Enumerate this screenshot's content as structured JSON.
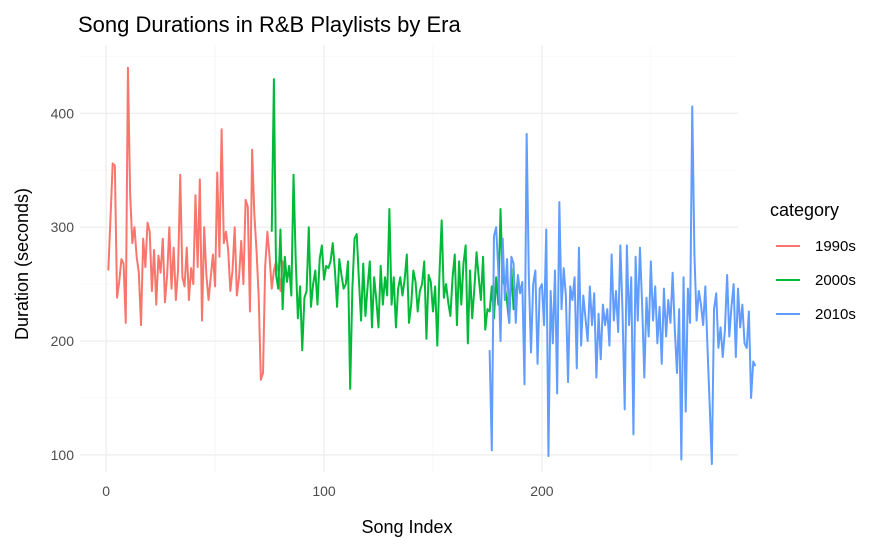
{
  "chart_data": {
    "type": "line",
    "title": "Song Durations in R&B Playlists by Era",
    "xlabel": "Song Index",
    "ylabel": "Duration (seconds)",
    "xlim": [
      -12,
      290
    ],
    "ylim": [
      85,
      460
    ],
    "xticks": [
      0,
      100,
      200
    ],
    "yticks": [
      100,
      200,
      300,
      400
    ],
    "grid": true,
    "legend": {
      "title": "category",
      "position": "right"
    },
    "series": [
      {
        "name": "1990s",
        "color": "#F8766D",
        "x_start": 1,
        "values": [
          262,
          308,
          356,
          354,
          238,
          252,
          272,
          268,
          216,
          440,
          330,
          286,
          300,
          274,
          260,
          214,
          290,
          265,
          304,
          296,
          244,
          280,
          232,
          275,
          260,
          290,
          234,
          258,
          300,
          246,
          282,
          236,
          262,
          346,
          256,
          248,
          282,
          236,
          264,
          250,
          328,
          265,
          342,
          218,
          300,
          258,
          236,
          256,
          276,
          248,
          348,
          274,
          386,
          286,
          296,
          280,
          244,
          262,
          300,
          240,
          256,
          288,
          250,
          324,
          318,
          226,
          368,
          312,
          280,
          240,
          166,
          172,
          266,
          296,
          274,
          246,
          262,
          270,
          262,
          244,
          270,
          262,
          254
        ]
      },
      {
        "name": "2000s",
        "color": "#00BA38",
        "x_start": 76,
        "values": [
          296,
          430,
          258,
          246,
          298,
          228,
          274,
          252,
          266,
          240,
          346,
          272,
          220,
          248,
          192,
          238,
          244,
          300,
          230,
          250,
          262,
          232,
          272,
          284,
          254,
          266,
          264,
          270,
          286,
          262,
          230,
          272,
          258,
          246,
          250,
          270,
          158,
          246,
          290,
          294,
          254,
          218,
          268,
          222,
          248,
          270,
          212,
          256,
          236,
          212,
          266,
          232,
          256,
          240,
          316,
          232,
          256,
          212,
          246,
          256,
          240,
          254,
          276,
          216,
          232,
          262,
          252,
          226,
          244,
          250,
          270,
          202,
          258,
          252,
          226,
          248,
          196,
          260,
          306,
          238,
          250,
          234,
          222,
          256,
          276,
          214,
          270,
          232,
          268,
          284,
          198,
          262,
          220,
          246,
          278,
          256,
          236,
          274,
          210,
          228,
          226,
          248,
          220,
          256,
          232,
          316,
          254,
          248,
          234,
          216,
          264,
          228,
          238,
          256
        ]
      },
      {
        "name": "2010s",
        "color": "#619CFF",
        "x_start": 176,
        "values": [
          192,
          104,
          292,
          300,
          262,
          200,
          290,
          236,
          272,
          216,
          274,
          268,
          216,
          258,
          242,
          252,
          162,
          382,
          256,
          190,
          250,
          262,
          180,
          246,
          250,
          214,
          298,
          99,
          244,
          198,
          262,
          154,
          322,
          228,
          264,
          240,
          164,
          248,
          236,
          256,
          176,
          282,
          196,
          240,
          220,
          200,
          248,
          214,
          242,
          168,
          224,
          184,
          232,
          214,
          228,
          196,
          276,
          218,
          244,
          208,
          284,
          226,
          140,
          284,
          214,
          256,
          118,
          274,
          218,
          282,
          232,
          168,
          238,
          204,
          270,
          218,
          248,
          198,
          230,
          180,
          246,
          204,
          236,
          216,
          260,
          210,
          172,
          228,
          96,
          256,
          138,
          246,
          216,
          406,
          276,
          218,
          244,
          232,
          214,
          248,
          194,
          144,
          92,
          228,
          242,
          194,
          212,
          186,
          210,
          258,
          204,
          230,
          250,
          186,
          246,
          212,
          232,
          198,
          194,
          226,
          150,
          182,
          178
        ]
      }
    ]
  }
}
